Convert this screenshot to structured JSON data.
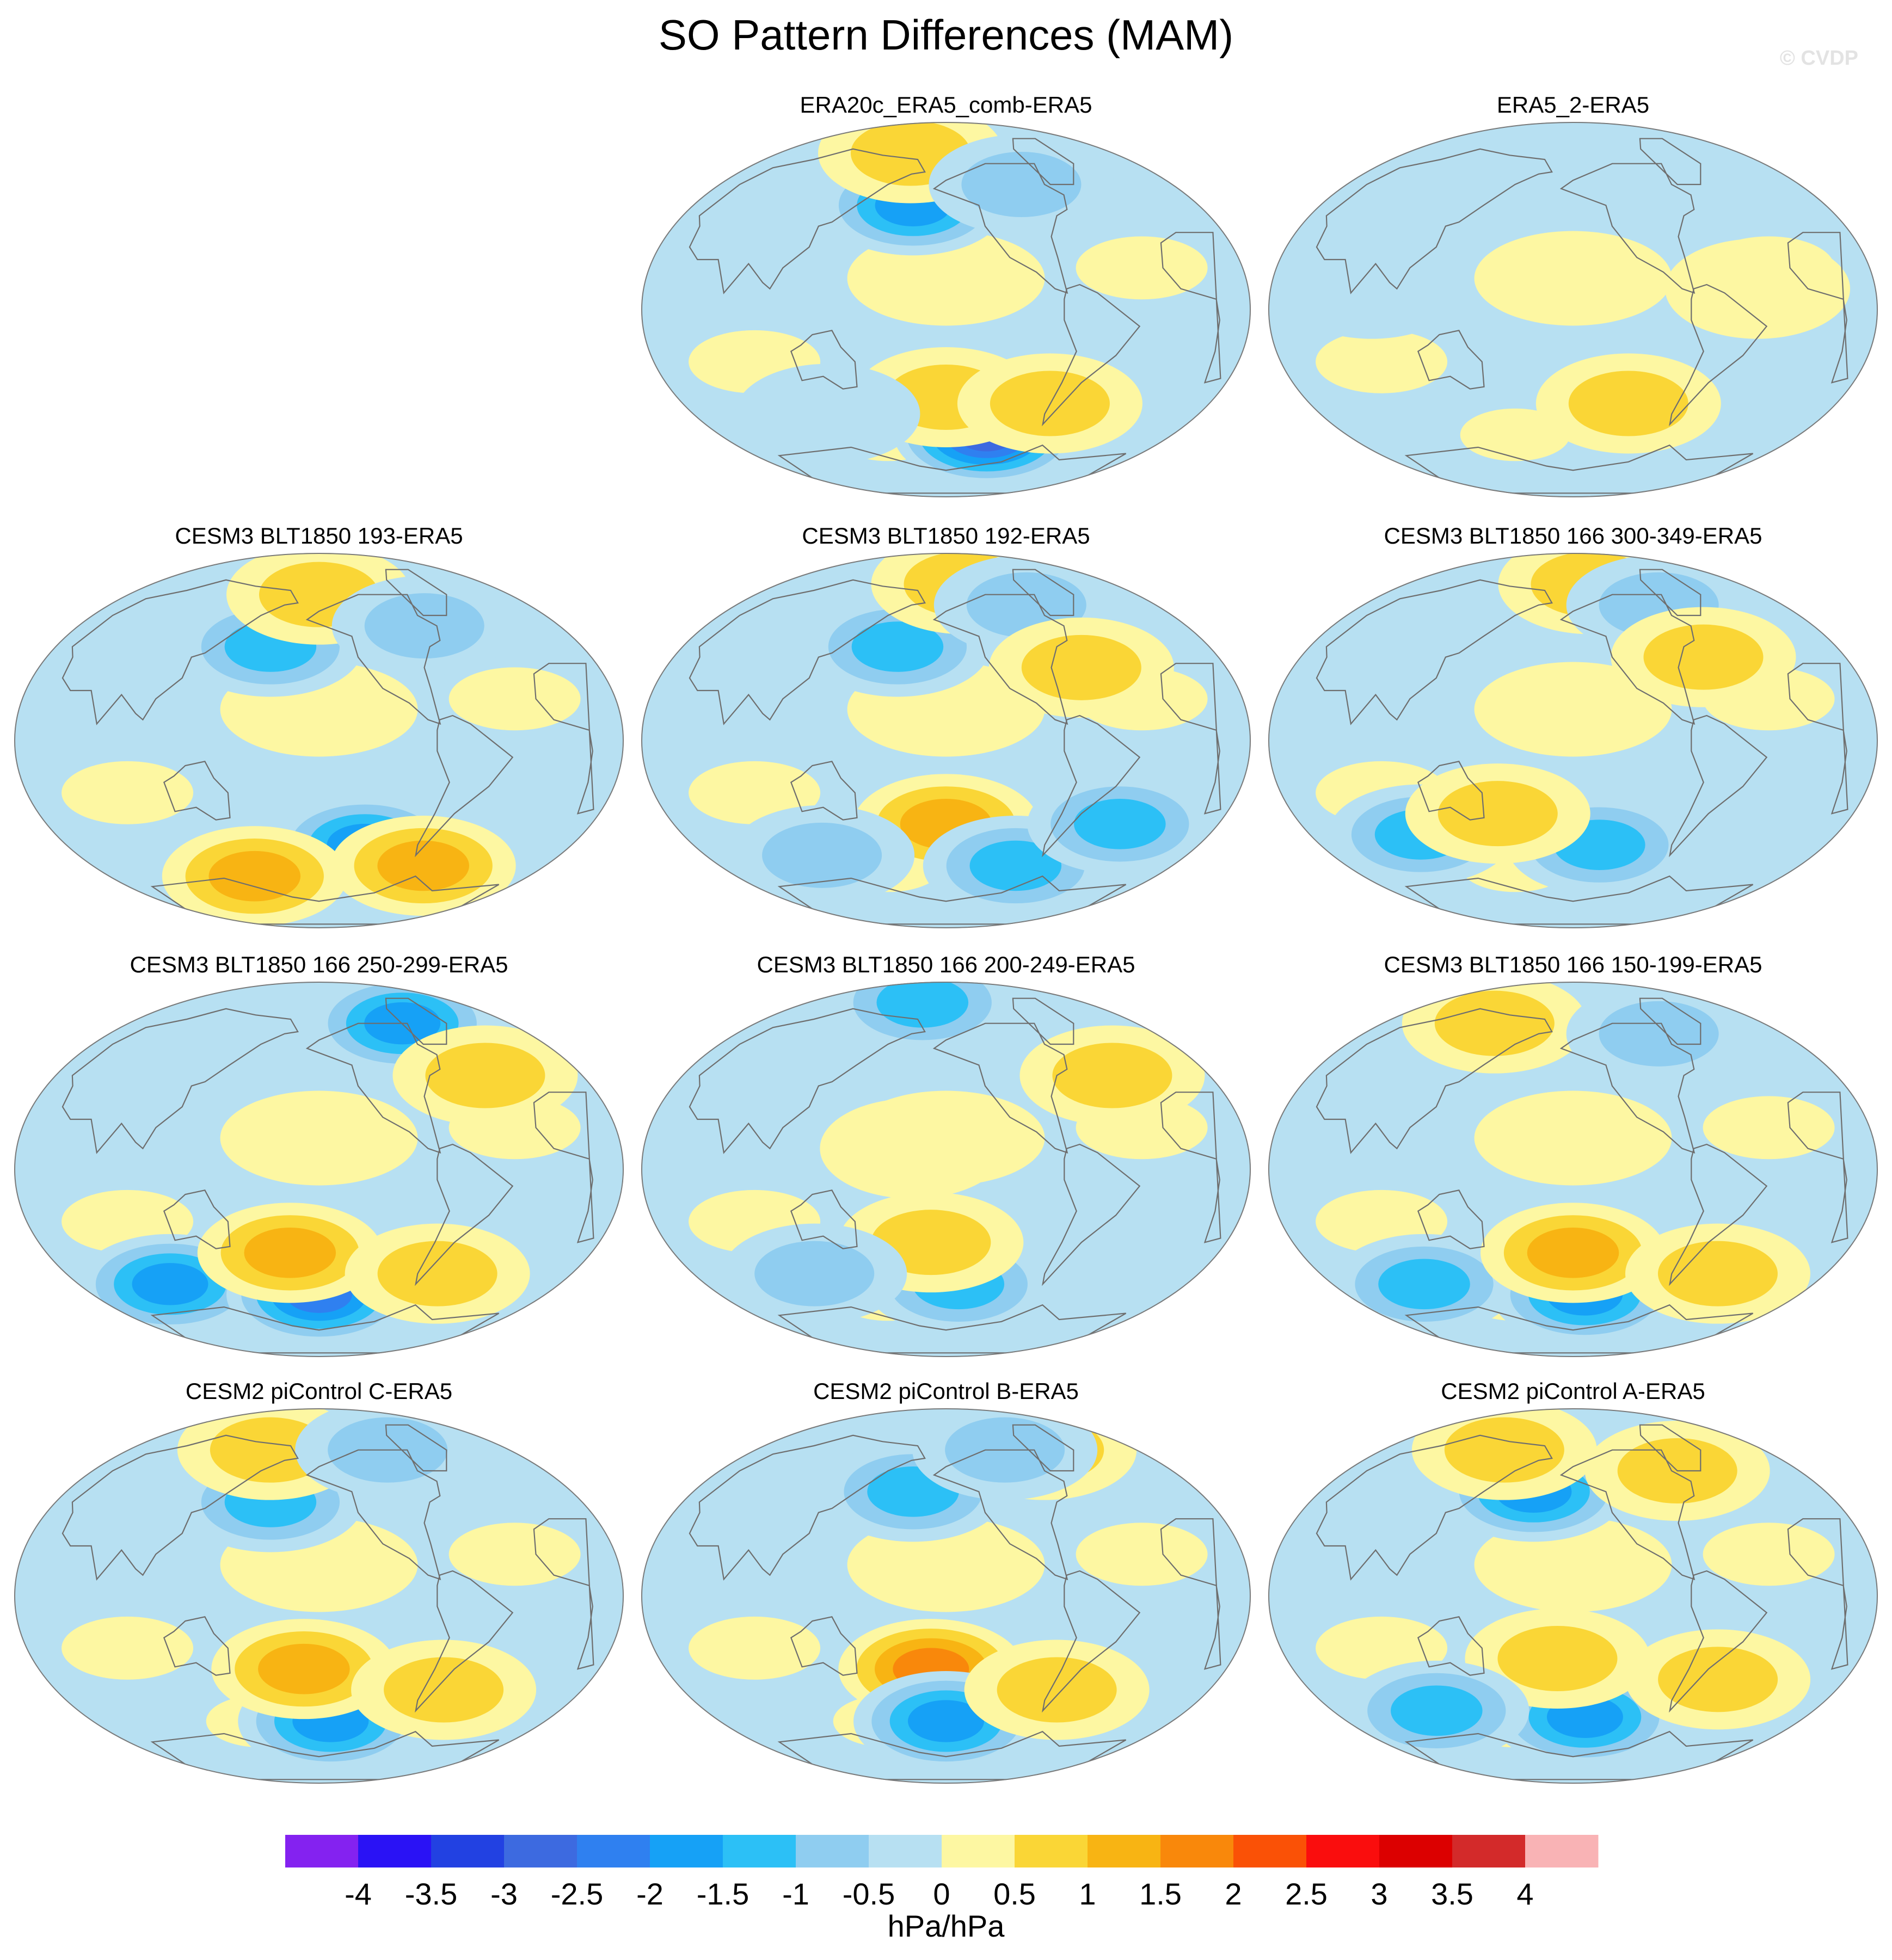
{
  "page": {
    "title": "SO Pattern Differences (MAM)",
    "watermark": "© CVDP"
  },
  "chart_data": {
    "type": "heatmap",
    "title": "SO Pattern Differences (MAM)",
    "projection": "global map (Robinson-like ellipse), Pacific-centred",
    "units": "hPa/hPa",
    "levels": [
      -4,
      -3.5,
      -3,
      -2.5,
      -2,
      -1.5,
      -1,
      -0.5,
      0,
      0.5,
      1,
      1.5,
      2,
      2.5,
      3,
      3.5,
      4
    ],
    "colorbar_tick_labels": [
      "-4",
      "-3.5",
      "-3",
      "-2.5",
      "-2",
      "-1.5",
      "-1",
      "-0.5",
      "0",
      "0.5",
      "1",
      "1.5",
      "2",
      "2.5",
      "3",
      "3.5",
      "4"
    ],
    "colorbar_colors": [
      "#8422f0",
      "#2a12f5",
      "#2241e2",
      "#3d6ae0",
      "#2f80f0",
      "#16a1f6",
      "#2cc0f6",
      "#8fcdf0",
      "#b7e0f2",
      "#fdf7a2",
      "#fad636",
      "#f8b413",
      "#f9880b",
      "#fa5106",
      "#fa0d0d",
      "#dc0000",
      "#d32a2a",
      "#f9b3b5"
    ],
    "panels": [
      {
        "name": "ERA20c_ERA5_comb-ERA5",
        "features": [
          {
            "type": "low",
            "lon": 185,
            "lat": 50,
            "value": -2.0
          },
          {
            "type": "low",
            "lon": 245,
            "lat": -60,
            "value": -3.0
          },
          {
            "type": "high",
            "lon": 210,
            "lat": -42,
            "value": 1.2
          },
          {
            "type": "high",
            "lon": 285,
            "lat": -45,
            "value": 1.2
          },
          {
            "type": "high",
            "lon": 170,
            "lat": 75,
            "value": 1.0
          },
          {
            "type": "low",
            "lon": 275,
            "lat": 60,
            "value": -0.8
          },
          {
            "type": "low",
            "lon": 120,
            "lat": -50,
            "value": -0.7
          }
        ]
      },
      {
        "name": "ERA5_2-ERA5",
        "features": [
          {
            "type": "low",
            "lon": 225,
            "lat": 72,
            "value": -0.6
          },
          {
            "type": "low",
            "lon": 90,
            "lat": 10,
            "value": -0.5
          },
          {
            "type": "high",
            "lon": 250,
            "lat": -45,
            "value": 0.9
          },
          {
            "type": "high",
            "lon": 320,
            "lat": 10,
            "value": 0.4
          }
        ]
      },
      {
        "name": "CESM3 BLT1850 193-ERA5",
        "features": [
          {
            "type": "low",
            "lon": 175,
            "lat": 45,
            "value": -1.6
          },
          {
            "type": "low",
            "lon": 245,
            "lat": -50,
            "value": -1.8
          },
          {
            "type": "high",
            "lon": 150,
            "lat": -65,
            "value": 1.3
          },
          {
            "type": "high",
            "lon": 300,
            "lat": -60,
            "value": 1.4
          },
          {
            "type": "high",
            "lon": 210,
            "lat": 70,
            "value": 1.0
          },
          {
            "type": "low",
            "lon": 295,
            "lat": 55,
            "value": -0.8
          }
        ]
      },
      {
        "name": "CESM3 BLT1850 192-ERA5",
        "features": [
          {
            "type": "low",
            "lon": 175,
            "lat": 45,
            "value": -1.6
          },
          {
            "type": "high",
            "lon": 210,
            "lat": -40,
            "value": 1.7
          },
          {
            "type": "low",
            "lon": 270,
            "lat": -60,
            "value": -1.6
          },
          {
            "type": "low",
            "lon": 330,
            "lat": -40,
            "value": -1.4
          },
          {
            "type": "low",
            "lon": 110,
            "lat": -55,
            "value": -1.0
          },
          {
            "type": "high",
            "lon": 230,
            "lat": 75,
            "value": 1.0
          },
          {
            "type": "low",
            "lon": 285,
            "lat": 65,
            "value": -1.2
          },
          {
            "type": "high",
            "lon": 300,
            "lat": 35,
            "value": 1.0
          }
        ]
      },
      {
        "name": "CESM3 BLT1850 166 300-349-ERA5",
        "features": [
          {
            "type": "low",
            "lon": 100,
            "lat": -45,
            "value": -1.5
          },
          {
            "type": "low",
            "lon": 230,
            "lat": -50,
            "value": -1.7
          },
          {
            "type": "high",
            "lon": 160,
            "lat": -35,
            "value": 0.9
          },
          {
            "type": "high",
            "lon": 230,
            "lat": 75,
            "value": 1.0
          },
          {
            "type": "low",
            "lon": 290,
            "lat": 65,
            "value": -0.9
          },
          {
            "type": "high",
            "lon": 300,
            "lat": 40,
            "value": 1.0
          }
        ]
      },
      {
        "name": "CESM3 BLT1850 166 250-299-ERA5",
        "features": [
          {
            "type": "low",
            "lon": 90,
            "lat": -55,
            "value": -1.8
          },
          {
            "type": "low",
            "lon": 210,
            "lat": -60,
            "value": -2.7
          },
          {
            "type": "high",
            "lon": 190,
            "lat": -40,
            "value": 1.4
          },
          {
            "type": "low",
            "lon": 295,
            "lat": 70,
            "value": -1.8
          },
          {
            "type": "high",
            "lon": 300,
            "lat": -50,
            "value": 1.0
          },
          {
            "type": "high",
            "lon": 330,
            "lat": 45,
            "value": 0.8
          }
        ]
      },
      {
        "name": "CESM3 BLT1850 166 200-249-ERA5",
        "features": [
          {
            "type": "low",
            "lon": 220,
            "lat": -55,
            "value": -1.7
          },
          {
            "type": "high",
            "lon": 200,
            "lat": -35,
            "value": 1.0
          },
          {
            "type": "low",
            "lon": 180,
            "lat": 80,
            "value": -1.5
          },
          {
            "type": "high",
            "lon": 330,
            "lat": 45,
            "value": 1.0
          },
          {
            "type": "high",
            "lon": 190,
            "lat": 10,
            "value": 0.7
          },
          {
            "type": "low",
            "lon": 110,
            "lat": -50,
            "value": -0.8
          }
        ]
      },
      {
        "name": "CESM3 BLT1850 166 150-199-ERA5",
        "features": [
          {
            "type": "low",
            "lon": 90,
            "lat": -55,
            "value": -1.5
          },
          {
            "type": "low",
            "lon": 220,
            "lat": -60,
            "value": -1.9
          },
          {
            "type": "high",
            "lon": 210,
            "lat": -40,
            "value": 1.6
          },
          {
            "type": "high",
            "lon": 130,
            "lat": 70,
            "value": 1.0
          },
          {
            "type": "low",
            "lon": 290,
            "lat": 65,
            "value": -1.0
          },
          {
            "type": "high",
            "lon": 320,
            "lat": -50,
            "value": 0.9
          }
        ]
      },
      {
        "name": "CESM2 piControl C-ERA5",
        "features": [
          {
            "type": "low",
            "lon": 175,
            "lat": 45,
            "value": -1.5
          },
          {
            "type": "low",
            "lon": 220,
            "lat": -60,
            "value": -2.0
          },
          {
            "type": "high",
            "lon": 200,
            "lat": -35,
            "value": 1.5
          },
          {
            "type": "high",
            "lon": 300,
            "lat": -45,
            "value": 1.0
          },
          {
            "type": "high",
            "lon": 160,
            "lat": 70,
            "value": 1.0
          },
          {
            "type": "low",
            "lon": 280,
            "lat": 70,
            "value": -0.9
          }
        ]
      },
      {
        "name": "CESM2 piControl B-ERA5",
        "features": [
          {
            "type": "low",
            "lon": 185,
            "lat": 50,
            "value": -1.6
          },
          {
            "type": "high",
            "lon": 200,
            "lat": -35,
            "value": 1.8
          },
          {
            "type": "low",
            "lon": 210,
            "lat": -60,
            "value": -1.8
          },
          {
            "type": "high",
            "lon": 290,
            "lat": -45,
            "value": 1.0
          },
          {
            "type": "high",
            "lon": 310,
            "lat": 70,
            "value": 1.0
          },
          {
            "type": "low",
            "lon": 270,
            "lat": 70,
            "value": -0.9
          }
        ]
      },
      {
        "name": "CESM2 piControl A-ERA5",
        "features": [
          {
            "type": "low",
            "lon": 180,
            "lat": 50,
            "value": -2.2
          },
          {
            "type": "low",
            "lon": 220,
            "lat": -58,
            "value": -2.0
          },
          {
            "type": "high",
            "lon": 200,
            "lat": -30,
            "value": 1.0
          },
          {
            "type": "low",
            "lon": 100,
            "lat": -55,
            "value": -1.5
          },
          {
            "type": "high",
            "lon": 140,
            "lat": 70,
            "value": 1.2
          },
          {
            "type": "high",
            "lon": 300,
            "lat": 60,
            "value": 1.0
          },
          {
            "type": "high",
            "lon": 310,
            "lat": -40,
            "value": 0.8
          }
        ]
      }
    ]
  }
}
